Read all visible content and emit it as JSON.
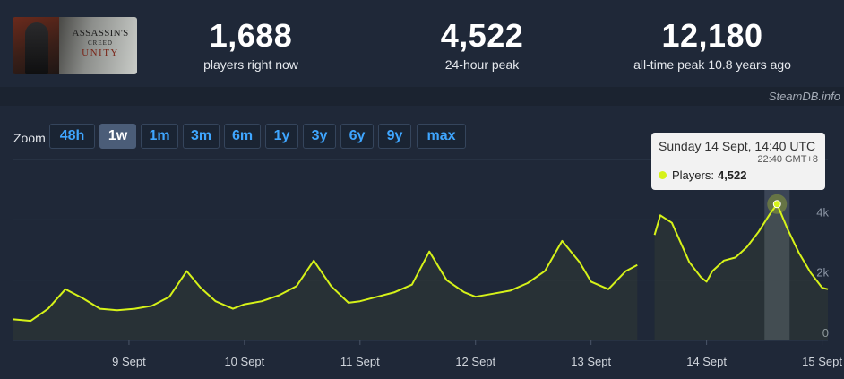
{
  "game": {
    "logo_line1": "ASSASSIN'S",
    "logo_line2": "CREED",
    "logo_line3": "UNITY"
  },
  "stats": [
    {
      "value": "1,688",
      "label": "players right now"
    },
    {
      "value": "4,522",
      "label": "24-hour peak"
    },
    {
      "value": "12,180",
      "label": "all-time peak 10.8 years ago"
    }
  ],
  "watermark": "SteamDB.info",
  "zoom": {
    "label": "Zoom",
    "options": [
      "48h",
      "1w",
      "1m",
      "3m",
      "6m",
      "1y",
      "3y",
      "6y",
      "9y",
      "max"
    ],
    "selected": "1w"
  },
  "tooltip": {
    "date": "Sunday 14 Sept, 14:40 UTC",
    "local_time": "22:40 GMT+8",
    "series_label": "Players:",
    "value": "4,522"
  },
  "colors": {
    "line": "#d6f219",
    "accent_link": "#3fa6ff",
    "background": "#1b2330"
  },
  "chart_data": {
    "type": "line",
    "x_ticks": [
      "9 Sept",
      "10 Sept",
      "11 Sept",
      "12 Sept",
      "13 Sept",
      "14 Sept",
      "15 Sept"
    ],
    "y_ticks": [
      "0",
      "2k",
      "4k"
    ],
    "ylim": [
      0,
      6000
    ],
    "grid": true,
    "series": [
      {
        "x": [
          8.0,
          8.15,
          8.3,
          8.45,
          8.6,
          8.75,
          8.9,
          9.05,
          9.2,
          9.35,
          9.5,
          9.62,
          9.75,
          9.9,
          10.0,
          10.15,
          10.3,
          10.45,
          10.6,
          10.75,
          10.9,
          11.0,
          11.15,
          11.3,
          11.45,
          11.6,
          11.75,
          11.9,
          12.0,
          12.15,
          12.3,
          12.45,
          12.6,
          12.75,
          12.9,
          13.0,
          13.15,
          13.3,
          13.4
        ],
        "y": [
          700,
          650,
          1050,
          1700,
          1400,
          1050,
          1000,
          1050,
          1150,
          1450,
          2300,
          1750,
          1300,
          1050,
          1200,
          1300,
          1500,
          1800,
          2650,
          1800,
          1250,
          1300,
          1450,
          1600,
          1850,
          2950,
          2000,
          1600,
          1450,
          1550,
          1650,
          1900,
          2300,
          3300,
          2600,
          1950,
          1700,
          2300,
          2500
        ]
      },
      {
        "x": [
          13.55,
          13.6,
          13.7,
          13.85,
          13.95,
          14.0,
          14.05,
          14.15,
          14.25,
          14.35,
          14.45,
          14.55,
          14.61,
          14.7,
          14.8,
          14.9,
          15.0,
          15.05
        ],
        "y": [
          3500,
          4150,
          3900,
          2600,
          2100,
          1950,
          2300,
          2650,
          2750,
          3100,
          3600,
          4200,
          4522,
          3700,
          2900,
          2250,
          1750,
          1700
        ]
      }
    ]
  }
}
